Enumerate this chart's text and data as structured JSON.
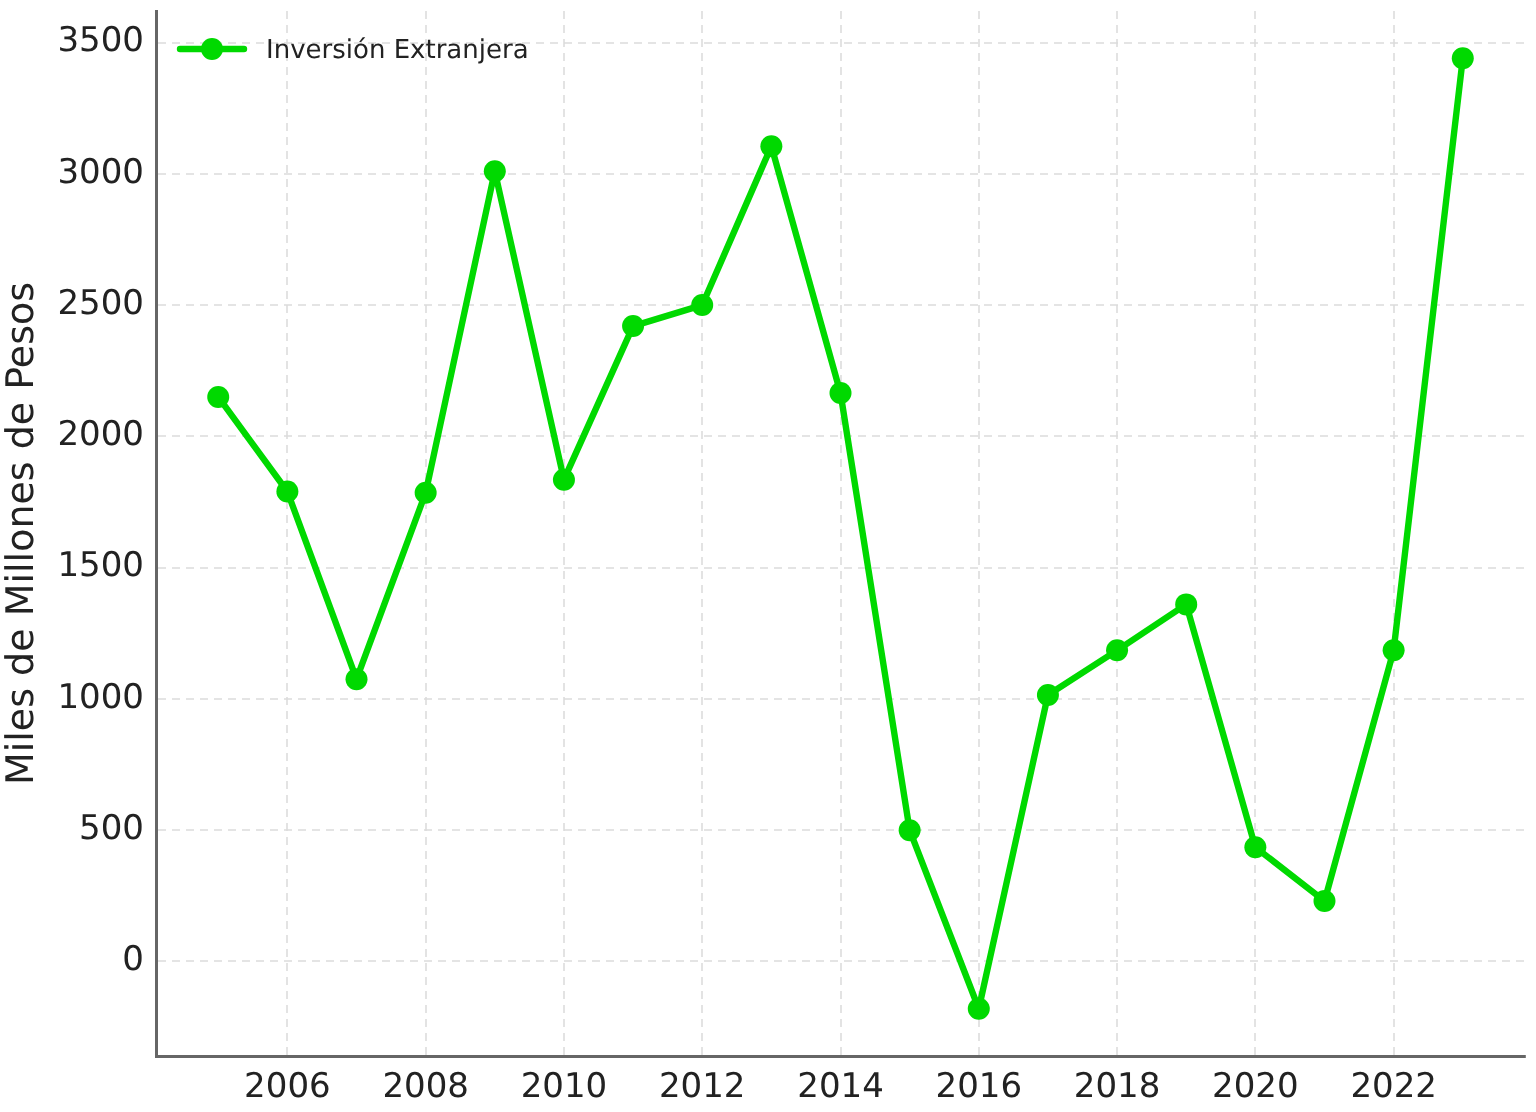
{
  "chart_data": {
    "type": "line",
    "ylabel": "Miles de Millones de Pesos",
    "x": [
      2005,
      2006,
      2007,
      2008,
      2009,
      2010,
      2011,
      2012,
      2013,
      2014,
      2015,
      2016,
      2017,
      2018,
      2019,
      2020,
      2021,
      2022,
      2023
    ],
    "series": [
      {
        "name": "Inversión Extranjera",
        "color": "#00d900",
        "values": [
          2150,
          1790,
          1075,
          1785,
          3010,
          1835,
          2420,
          2500,
          3105,
          2165,
          500,
          -180,
          1015,
          1185,
          1360,
          435,
          230,
          1185,
          3440
        ]
      }
    ],
    "xlim": [
      2004.1,
      2023.9
    ],
    "ylim": [
      -360,
      3620
    ],
    "xticks": [
      2006,
      2008,
      2010,
      2012,
      2014,
      2016,
      2018,
      2020,
      2022
    ],
    "yticks": [
      0,
      500,
      1000,
      1500,
      2000,
      2500,
      3000,
      3500
    ],
    "grid": true,
    "legend": "top left",
    "marker": "circle",
    "line_style": "solid"
  }
}
